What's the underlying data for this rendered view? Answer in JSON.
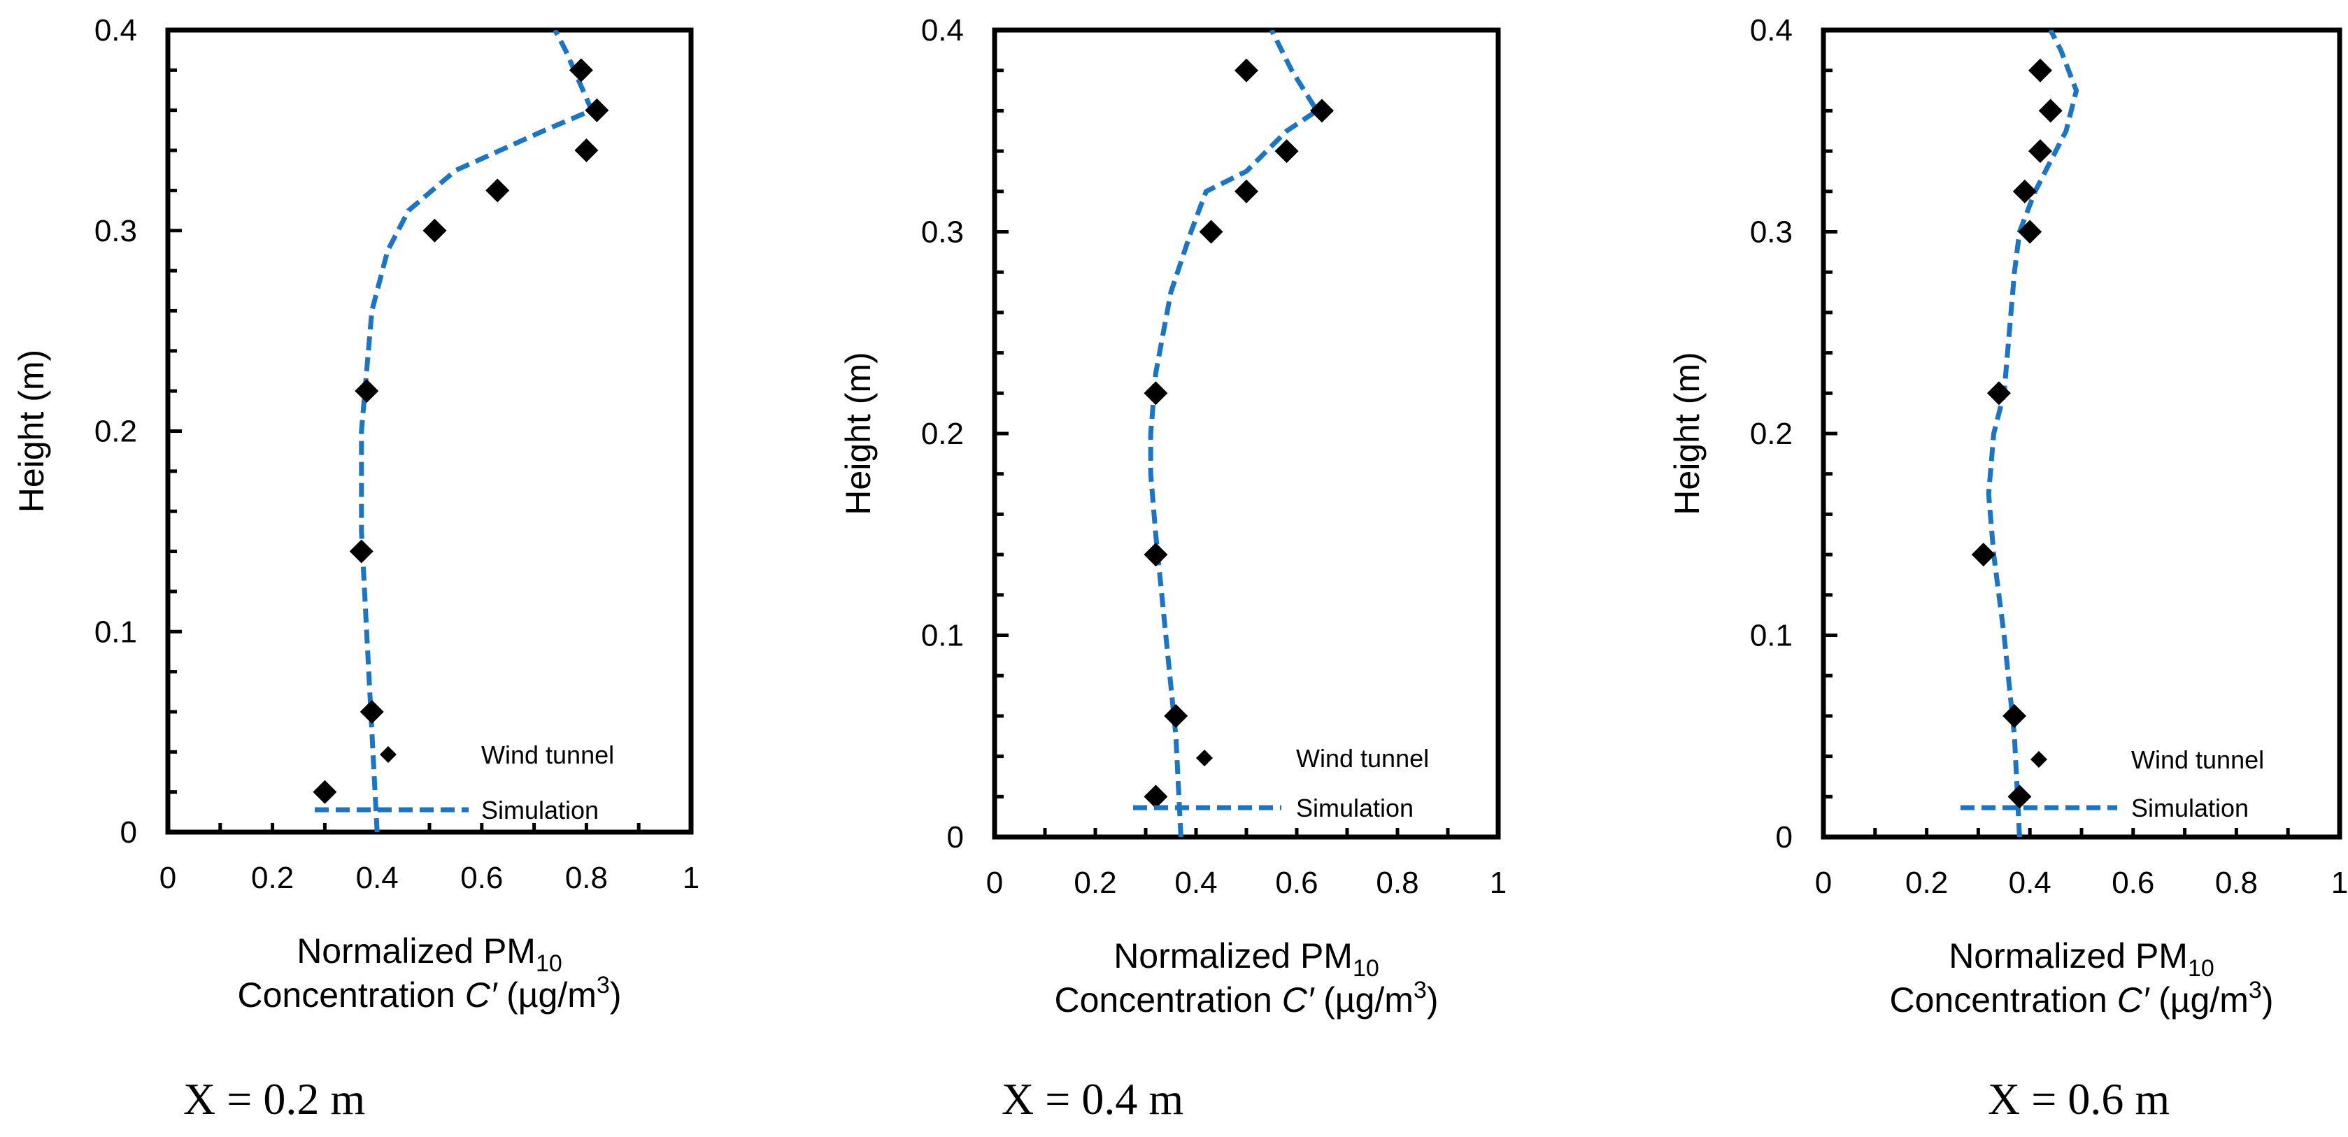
{
  "chart_data": [
    {
      "type": "scatter",
      "caption": "X = 0.2 m",
      "xlabel_line1": "Normalized PM",
      "xlabel_sub": "10",
      "xlabel_line2_pre": "Concentration ",
      "xlabel_line2_var": "C′",
      "xlabel_line2_mid": " (µg/m",
      "xlabel_line2_sup": "3",
      "xlabel_line2_post": ")",
      "ylabel": "Height (m)",
      "xlim": [
        0,
        1
      ],
      "ylim": [
        0,
        0.4
      ],
      "xticks": [
        "0",
        "0.2",
        "0.4",
        "0.6",
        "0.8",
        "1"
      ],
      "yticks": [
        "0",
        "0.1",
        "0.2",
        "0.3",
        "0.4"
      ],
      "series": [
        {
          "name": "Wind tunnel",
          "style": "markers",
          "color": "#000000",
          "x": [
            0.3,
            0.39,
            0.37,
            0.38,
            0.51,
            0.63,
            0.8,
            0.82,
            0.79
          ],
          "y": [
            0.02,
            0.06,
            0.14,
            0.22,
            0.3,
            0.32,
            0.34,
            0.36,
            0.38
          ]
        },
        {
          "name": "Simulation",
          "style": "dashed",
          "color": "#1b75c6",
          "x": [
            0.4,
            0.39,
            0.38,
            0.37,
            0.37,
            0.38,
            0.39,
            0.42,
            0.46,
            0.55,
            0.72,
            0.81,
            0.76,
            0.74
          ],
          "y": [
            0.0,
            0.05,
            0.1,
            0.15,
            0.2,
            0.23,
            0.26,
            0.29,
            0.31,
            0.33,
            0.35,
            0.36,
            0.39,
            0.4
          ]
        }
      ]
    },
    {
      "type": "scatter",
      "caption": "X = 0.4 m",
      "xlabel_line1": "Normalized PM",
      "xlabel_sub": "10",
      "xlabel_line2_pre": "Concentration ",
      "xlabel_line2_var": "C′",
      "xlabel_line2_mid": " (µg/m",
      "xlabel_line2_sup": "3",
      "xlabel_line2_post": ")",
      "ylabel": "Height (m)",
      "xlim": [
        0,
        1
      ],
      "ylim": [
        0,
        0.4
      ],
      "xticks": [
        "0",
        "0.2",
        "0.4",
        "0.6",
        "0.8",
        "1"
      ],
      "yticks": [
        "0",
        "0.1",
        "0.2",
        "0.3",
        "0.4"
      ],
      "series": [
        {
          "name": "Wind tunnel",
          "style": "markers",
          "color": "#000000",
          "x": [
            0.32,
            0.36,
            0.32,
            0.32,
            0.43,
            0.5,
            0.58,
            0.65,
            0.5
          ],
          "y": [
            0.02,
            0.06,
            0.14,
            0.22,
            0.3,
            0.32,
            0.34,
            0.36,
            0.38
          ]
        },
        {
          "name": "Simulation",
          "style": "dashed",
          "color": "#1b75c6",
          "x": [
            0.37,
            0.36,
            0.34,
            0.32,
            0.31,
            0.31,
            0.32,
            0.35,
            0.39,
            0.42,
            0.5,
            0.58,
            0.64,
            0.59,
            0.55
          ],
          "y": [
            0.0,
            0.05,
            0.1,
            0.15,
            0.18,
            0.2,
            0.23,
            0.27,
            0.3,
            0.32,
            0.33,
            0.35,
            0.36,
            0.38,
            0.4
          ]
        }
      ]
    },
    {
      "type": "scatter",
      "caption": "X = 0.6 m",
      "xlabel_line1": "Normalized PM",
      "xlabel_sub": "10",
      "xlabel_line2_pre": "Concentration ",
      "xlabel_line2_var": "C′",
      "xlabel_line2_mid": " (µg/m",
      "xlabel_line2_sup": "3",
      "xlabel_line2_post": ")",
      "ylabel": "Height (m)",
      "xlim": [
        0,
        1
      ],
      "ylim": [
        0,
        0.4
      ],
      "xticks": [
        "0",
        "0.2",
        "0.4",
        "0.6",
        "0.8",
        "1"
      ],
      "yticks": [
        "0",
        "0.1",
        "0.2",
        "0.3",
        "0.4"
      ],
      "series": [
        {
          "name": "Wind tunnel",
          "style": "markers",
          "color": "#000000",
          "x": [
            0.38,
            0.37,
            0.31,
            0.34,
            0.4,
            0.39,
            0.42,
            0.44,
            0.42
          ],
          "y": [
            0.02,
            0.06,
            0.14,
            0.22,
            0.3,
            0.32,
            0.34,
            0.36,
            0.38
          ]
        },
        {
          "name": "Simulation",
          "style": "dashed",
          "color": "#1b75c6",
          "x": [
            0.38,
            0.37,
            0.35,
            0.33,
            0.32,
            0.33,
            0.35,
            0.36,
            0.37,
            0.38,
            0.41,
            0.47,
            0.49,
            0.46,
            0.44
          ],
          "y": [
            0.0,
            0.05,
            0.1,
            0.14,
            0.17,
            0.2,
            0.22,
            0.25,
            0.28,
            0.3,
            0.32,
            0.35,
            0.37,
            0.39,
            0.4
          ]
        }
      ]
    }
  ]
}
